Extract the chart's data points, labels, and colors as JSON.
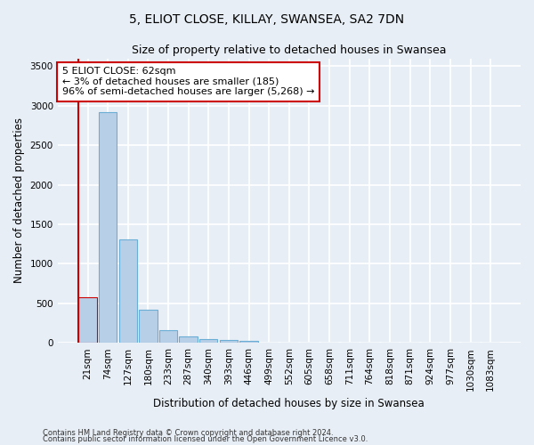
{
  "title": "5, ELIOT CLOSE, KILLAY, SWANSEA, SA2 7DN",
  "subtitle": "Size of property relative to detached houses in Swansea",
  "xlabel": "Distribution of detached houses by size in Swansea",
  "ylabel": "Number of detached properties",
  "footnote1": "Contains HM Land Registry data © Crown copyright and database right 2024.",
  "footnote2": "Contains public sector information licensed under the Open Government Licence v3.0.",
  "categories": [
    "21sqm",
    "74sqm",
    "127sqm",
    "180sqm",
    "233sqm",
    "287sqm",
    "340sqm",
    "393sqm",
    "446sqm",
    "499sqm",
    "552sqm",
    "605sqm",
    "658sqm",
    "711sqm",
    "764sqm",
    "818sqm",
    "871sqm",
    "924sqm",
    "977sqm",
    "1030sqm",
    "1083sqm"
  ],
  "values": [
    580,
    2920,
    1310,
    415,
    165,
    80,
    50,
    40,
    30,
    0,
    0,
    0,
    0,
    0,
    0,
    0,
    0,
    0,
    0,
    0,
    0
  ],
  "bar_color": "#b8cfe8",
  "bar_edge_color": "#6aaed6",
  "highlight_bar_index": 0,
  "highlight_edge_color": "#cc0000",
  "vline_color": "#cc0000",
  "annotation_text": "5 ELIOT CLOSE: 62sqm\n← 3% of detached houses are smaller (185)\n96% of semi-detached houses are larger (5,268) →",
  "annotation_box_color": "white",
  "annotation_box_edge_color": "#cc0000",
  "ylim": [
    0,
    3600
  ],
  "yticks": [
    0,
    500,
    1000,
    1500,
    2000,
    2500,
    3000,
    3500
  ],
  "bg_color": "#e8eef5",
  "plot_bg_color": "#e8eef5",
  "grid_color": "white",
  "title_fontsize": 10,
  "subtitle_fontsize": 9,
  "axis_label_fontsize": 8.5,
  "tick_fontsize": 7.5,
  "annotation_fontsize": 8
}
